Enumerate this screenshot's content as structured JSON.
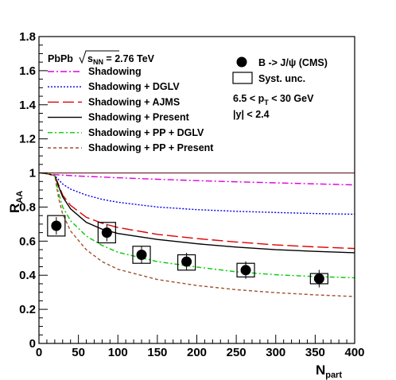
{
  "chart_data": {
    "type": "line",
    "title": "",
    "xlabel_main": "N",
    "xlabel_sub": "part",
    "ylabel_main": "R",
    "ylabel_sub": "AA",
    "xlim": [
      0,
      400
    ],
    "ylim": [
      0,
      1.8
    ],
    "x_ticks": [
      "0",
      "50",
      "100",
      "150",
      "200",
      "250",
      "300",
      "350",
      "400"
    ],
    "y_ticks": [
      "0",
      "0.2",
      "0.4",
      "0.6",
      "0.8",
      "1",
      "1.2",
      "1.4",
      "1.6",
      "1.8"
    ],
    "grid": false,
    "legend_position": "top-left",
    "system_label": "PbPb",
    "energy_label": {
      "main": "s",
      "sub": "NN",
      "value": " = 2.76 TeV"
    },
    "cuts": {
      "pt": {
        "left": "6.5 < p",
        "sub": "T",
        "right": " < 30 GeV"
      },
      "y": "|y| < 2.4"
    },
    "reference_line": {
      "y": 1.0,
      "color": "#7a3b3b"
    },
    "series": [
      {
        "name": "Shadowing",
        "color": "#dd00dd",
        "dash": "8 3 2 3",
        "x": [
          2,
          10,
          20,
          50,
          100,
          150,
          200,
          250,
          300,
          350,
          400
        ],
        "y": [
          1.0,
          0.995,
          0.99,
          0.982,
          0.972,
          0.963,
          0.955,
          0.948,
          0.942,
          0.936,
          0.93
        ]
      },
      {
        "name": "Shadowing + DGLV",
        "color": "#0000ee",
        "dash": "2 2",
        "x": [
          2,
          10,
          20,
          30,
          40,
          60,
          80,
          100,
          150,
          200,
          250,
          300,
          350,
          400
        ],
        "y": [
          1.0,
          0.995,
          0.985,
          0.935,
          0.905,
          0.87,
          0.845,
          0.828,
          0.8,
          0.785,
          0.775,
          0.768,
          0.762,
          0.758
        ]
      },
      {
        "name": "Shadowing + AJMS",
        "color": "#dd0000",
        "dash": "14 5",
        "x": [
          2,
          10,
          20,
          25,
          30,
          40,
          60,
          80,
          100,
          150,
          200,
          250,
          300,
          350,
          400
        ],
        "y": [
          1.0,
          0.995,
          0.985,
          0.93,
          0.87,
          0.81,
          0.74,
          0.705,
          0.68,
          0.64,
          0.615,
          0.595,
          0.578,
          0.566,
          0.557
        ]
      },
      {
        "name": "Shadowing + Present",
        "color": "#000000",
        "dash": "",
        "x": [
          2,
          10,
          20,
          25,
          30,
          40,
          60,
          80,
          100,
          150,
          200,
          250,
          300,
          350,
          400
        ],
        "y": [
          1.0,
          0.995,
          0.985,
          0.92,
          0.86,
          0.79,
          0.71,
          0.67,
          0.645,
          0.61,
          0.585,
          0.565,
          0.55,
          0.54,
          0.532
        ]
      },
      {
        "name": "Shadowing + PP + DGLV",
        "color": "#00cc00",
        "dash": "6 3 2 3",
        "x": [
          2,
          10,
          20,
          25,
          30,
          40,
          60,
          80,
          100,
          150,
          200,
          250,
          300,
          350,
          400
        ],
        "y": [
          1.0,
          0.995,
          0.985,
          0.88,
          0.8,
          0.72,
          0.63,
          0.575,
          0.535,
          0.48,
          0.448,
          0.42,
          0.403,
          0.392,
          0.385
        ]
      },
      {
        "name": "Shadowing + PP + Present",
        "color": "#a0522d",
        "dash": "4 3",
        "x": [
          2,
          10,
          20,
          25,
          30,
          40,
          60,
          80,
          100,
          150,
          200,
          250,
          300,
          350,
          400
        ],
        "y": [
          1.0,
          0.995,
          0.985,
          0.85,
          0.76,
          0.66,
          0.55,
          0.48,
          0.435,
          0.375,
          0.34,
          0.315,
          0.298,
          0.285,
          0.275
        ]
      }
    ],
    "data_series": {
      "name": "B -> J/ψ (CMS)",
      "syst_name": "Syst. unc.",
      "points": [
        {
          "x": 22,
          "y": 0.69,
          "syst_low": 0.63,
          "syst_high": 0.75
        },
        {
          "x": 86,
          "y": 0.65,
          "syst_low": 0.59,
          "syst_high": 0.71
        },
        {
          "x": 130,
          "y": 0.52,
          "syst_low": 0.47,
          "syst_high": 0.57
        },
        {
          "x": 187,
          "y": 0.48,
          "syst_low": 0.43,
          "syst_high": 0.52
        },
        {
          "x": 262,
          "y": 0.43,
          "syst_low": 0.39,
          "syst_high": 0.47
        },
        {
          "x": 355,
          "y": 0.38,
          "syst_low": 0.35,
          "syst_high": 0.41
        }
      ]
    }
  }
}
